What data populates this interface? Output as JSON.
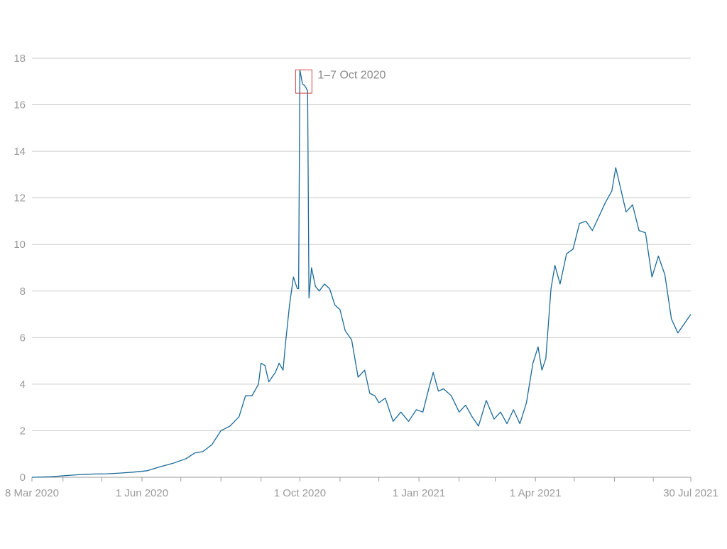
{
  "colors": {
    "line": "#1a6a9a",
    "grid": "#cccccc",
    "axis": "#9a9a9a",
    "tick_label": "#9a9a9a",
    "annotation_box": "#cc4444",
    "annotation_text": "#8a8a8a",
    "background": "#ffffff"
  },
  "chart_data": {
    "type": "line",
    "title": "",
    "xlabel": "",
    "ylabel": "",
    "grid": true,
    "xlim": [
      "2020-03-08",
      "2021-07-30"
    ],
    "ylim": [
      0,
      18
    ],
    "y_ticks": [
      0,
      2,
      4,
      6,
      8,
      10,
      12,
      14,
      16,
      18
    ],
    "x_tick_labels": [
      {
        "date": "2020-03-08",
        "label": "8 Mar 2020"
      },
      {
        "date": "2020-06-01",
        "label": "1 Jun 2020"
      },
      {
        "date": "2020-10-01",
        "label": "1 Oct 2020"
      },
      {
        "date": "2021-01-01",
        "label": "1 Jan 2021"
      },
      {
        "date": "2021-04-01",
        "label": "1 Apr 2021"
      },
      {
        "date": "2021-07-30",
        "label": "30 Jul 2021"
      }
    ],
    "x_minor_ticks": [
      "2020-04-01",
      "2020-05-01",
      "2020-07-01",
      "2020-08-01",
      "2020-09-01",
      "2020-11-01",
      "2020-12-01",
      "2021-02-01",
      "2021-03-01",
      "2021-05-01",
      "2021-06-01",
      "2021-07-01"
    ],
    "annotation": {
      "label": "1–7 Oct 2020",
      "x_start": "2020-10-01",
      "x_end": "2020-10-07",
      "y_low": 16.5,
      "y_high": 17.5
    },
    "series": [
      {
        "points": [
          [
            "2020-03-08",
            0.0
          ],
          [
            "2020-03-22",
            0.02
          ],
          [
            "2020-04-05",
            0.08
          ],
          [
            "2020-04-15",
            0.12
          ],
          [
            "2020-04-25",
            0.14
          ],
          [
            "2020-05-05",
            0.15
          ],
          [
            "2020-05-15",
            0.18
          ],
          [
            "2020-05-25",
            0.22
          ],
          [
            "2020-06-05",
            0.28
          ],
          [
            "2020-06-15",
            0.45
          ],
          [
            "2020-06-25",
            0.6
          ],
          [
            "2020-07-05",
            0.8
          ],
          [
            "2020-07-12",
            1.05
          ],
          [
            "2020-07-18",
            1.1
          ],
          [
            "2020-07-25",
            1.4
          ],
          [
            "2020-08-01",
            2.0
          ],
          [
            "2020-08-08",
            2.2
          ],
          [
            "2020-08-15",
            2.6
          ],
          [
            "2020-08-20",
            3.5
          ],
          [
            "2020-08-25",
            3.5
          ],
          [
            "2020-08-30",
            4.0
          ],
          [
            "2020-09-01",
            4.9
          ],
          [
            "2020-09-04",
            4.8
          ],
          [
            "2020-09-07",
            4.1
          ],
          [
            "2020-09-12",
            4.5
          ],
          [
            "2020-09-15",
            4.9
          ],
          [
            "2020-09-18",
            4.6
          ],
          [
            "2020-09-20",
            5.8
          ],
          [
            "2020-09-23",
            7.4
          ],
          [
            "2020-09-26",
            8.6
          ],
          [
            "2020-09-29",
            8.1
          ],
          [
            "2020-09-30",
            8.1
          ],
          [
            "2020-10-01",
            17.5
          ],
          [
            "2020-10-03",
            16.9
          ],
          [
            "2020-10-05",
            16.8
          ],
          [
            "2020-10-07",
            16.6
          ],
          [
            "2020-10-08",
            7.7
          ],
          [
            "2020-10-10",
            9.0
          ],
          [
            "2020-10-13",
            8.2
          ],
          [
            "2020-10-16",
            8.0
          ],
          [
            "2020-10-20",
            8.3
          ],
          [
            "2020-10-24",
            8.1
          ],
          [
            "2020-10-28",
            7.4
          ],
          [
            "2020-11-01",
            7.2
          ],
          [
            "2020-11-05",
            6.3
          ],
          [
            "2020-11-10",
            5.9
          ],
          [
            "2020-11-15",
            4.3
          ],
          [
            "2020-11-20",
            4.6
          ],
          [
            "2020-11-24",
            3.6
          ],
          [
            "2020-11-28",
            3.5
          ],
          [
            "2020-12-01",
            3.2
          ],
          [
            "2020-12-06",
            3.4
          ],
          [
            "2020-12-12",
            2.4
          ],
          [
            "2020-12-18",
            2.8
          ],
          [
            "2020-12-24",
            2.4
          ],
          [
            "2020-12-30",
            2.9
          ],
          [
            "2021-01-04",
            2.8
          ],
          [
            "2021-01-09",
            3.9
          ],
          [
            "2021-01-12",
            4.5
          ],
          [
            "2021-01-16",
            3.7
          ],
          [
            "2021-01-20",
            3.8
          ],
          [
            "2021-01-26",
            3.5
          ],
          [
            "2021-02-01",
            2.8
          ],
          [
            "2021-02-06",
            3.1
          ],
          [
            "2021-02-11",
            2.6
          ],
          [
            "2021-02-16",
            2.2
          ],
          [
            "2021-02-22",
            3.3
          ],
          [
            "2021-02-28",
            2.5
          ],
          [
            "2021-03-05",
            2.8
          ],
          [
            "2021-03-10",
            2.3
          ],
          [
            "2021-03-15",
            2.9
          ],
          [
            "2021-03-20",
            2.3
          ],
          [
            "2021-03-25",
            3.2
          ],
          [
            "2021-03-30",
            4.9
          ],
          [
            "2021-04-03",
            5.6
          ],
          [
            "2021-04-06",
            4.6
          ],
          [
            "2021-04-09",
            5.1
          ],
          [
            "2021-04-13",
            8.1
          ],
          [
            "2021-04-16",
            9.1
          ],
          [
            "2021-04-20",
            8.3
          ],
          [
            "2021-04-25",
            9.6
          ],
          [
            "2021-04-30",
            9.8
          ],
          [
            "2021-05-05",
            10.9
          ],
          [
            "2021-05-10",
            11.0
          ],
          [
            "2021-05-15",
            10.6
          ],
          [
            "2021-05-20",
            11.2
          ],
          [
            "2021-05-25",
            11.8
          ],
          [
            "2021-05-30",
            12.3
          ],
          [
            "2021-06-02",
            13.3
          ],
          [
            "2021-06-05",
            12.6
          ],
          [
            "2021-06-10",
            11.4
          ],
          [
            "2021-06-15",
            11.7
          ],
          [
            "2021-06-20",
            10.6
          ],
          [
            "2021-06-25",
            10.5
          ],
          [
            "2021-06-30",
            8.6
          ],
          [
            "2021-07-05",
            9.5
          ],
          [
            "2021-07-10",
            8.7
          ],
          [
            "2021-07-15",
            6.8
          ],
          [
            "2021-07-20",
            6.2
          ],
          [
            "2021-07-25",
            6.6
          ],
          [
            "2021-07-30",
            7.0
          ]
        ]
      }
    ]
  }
}
